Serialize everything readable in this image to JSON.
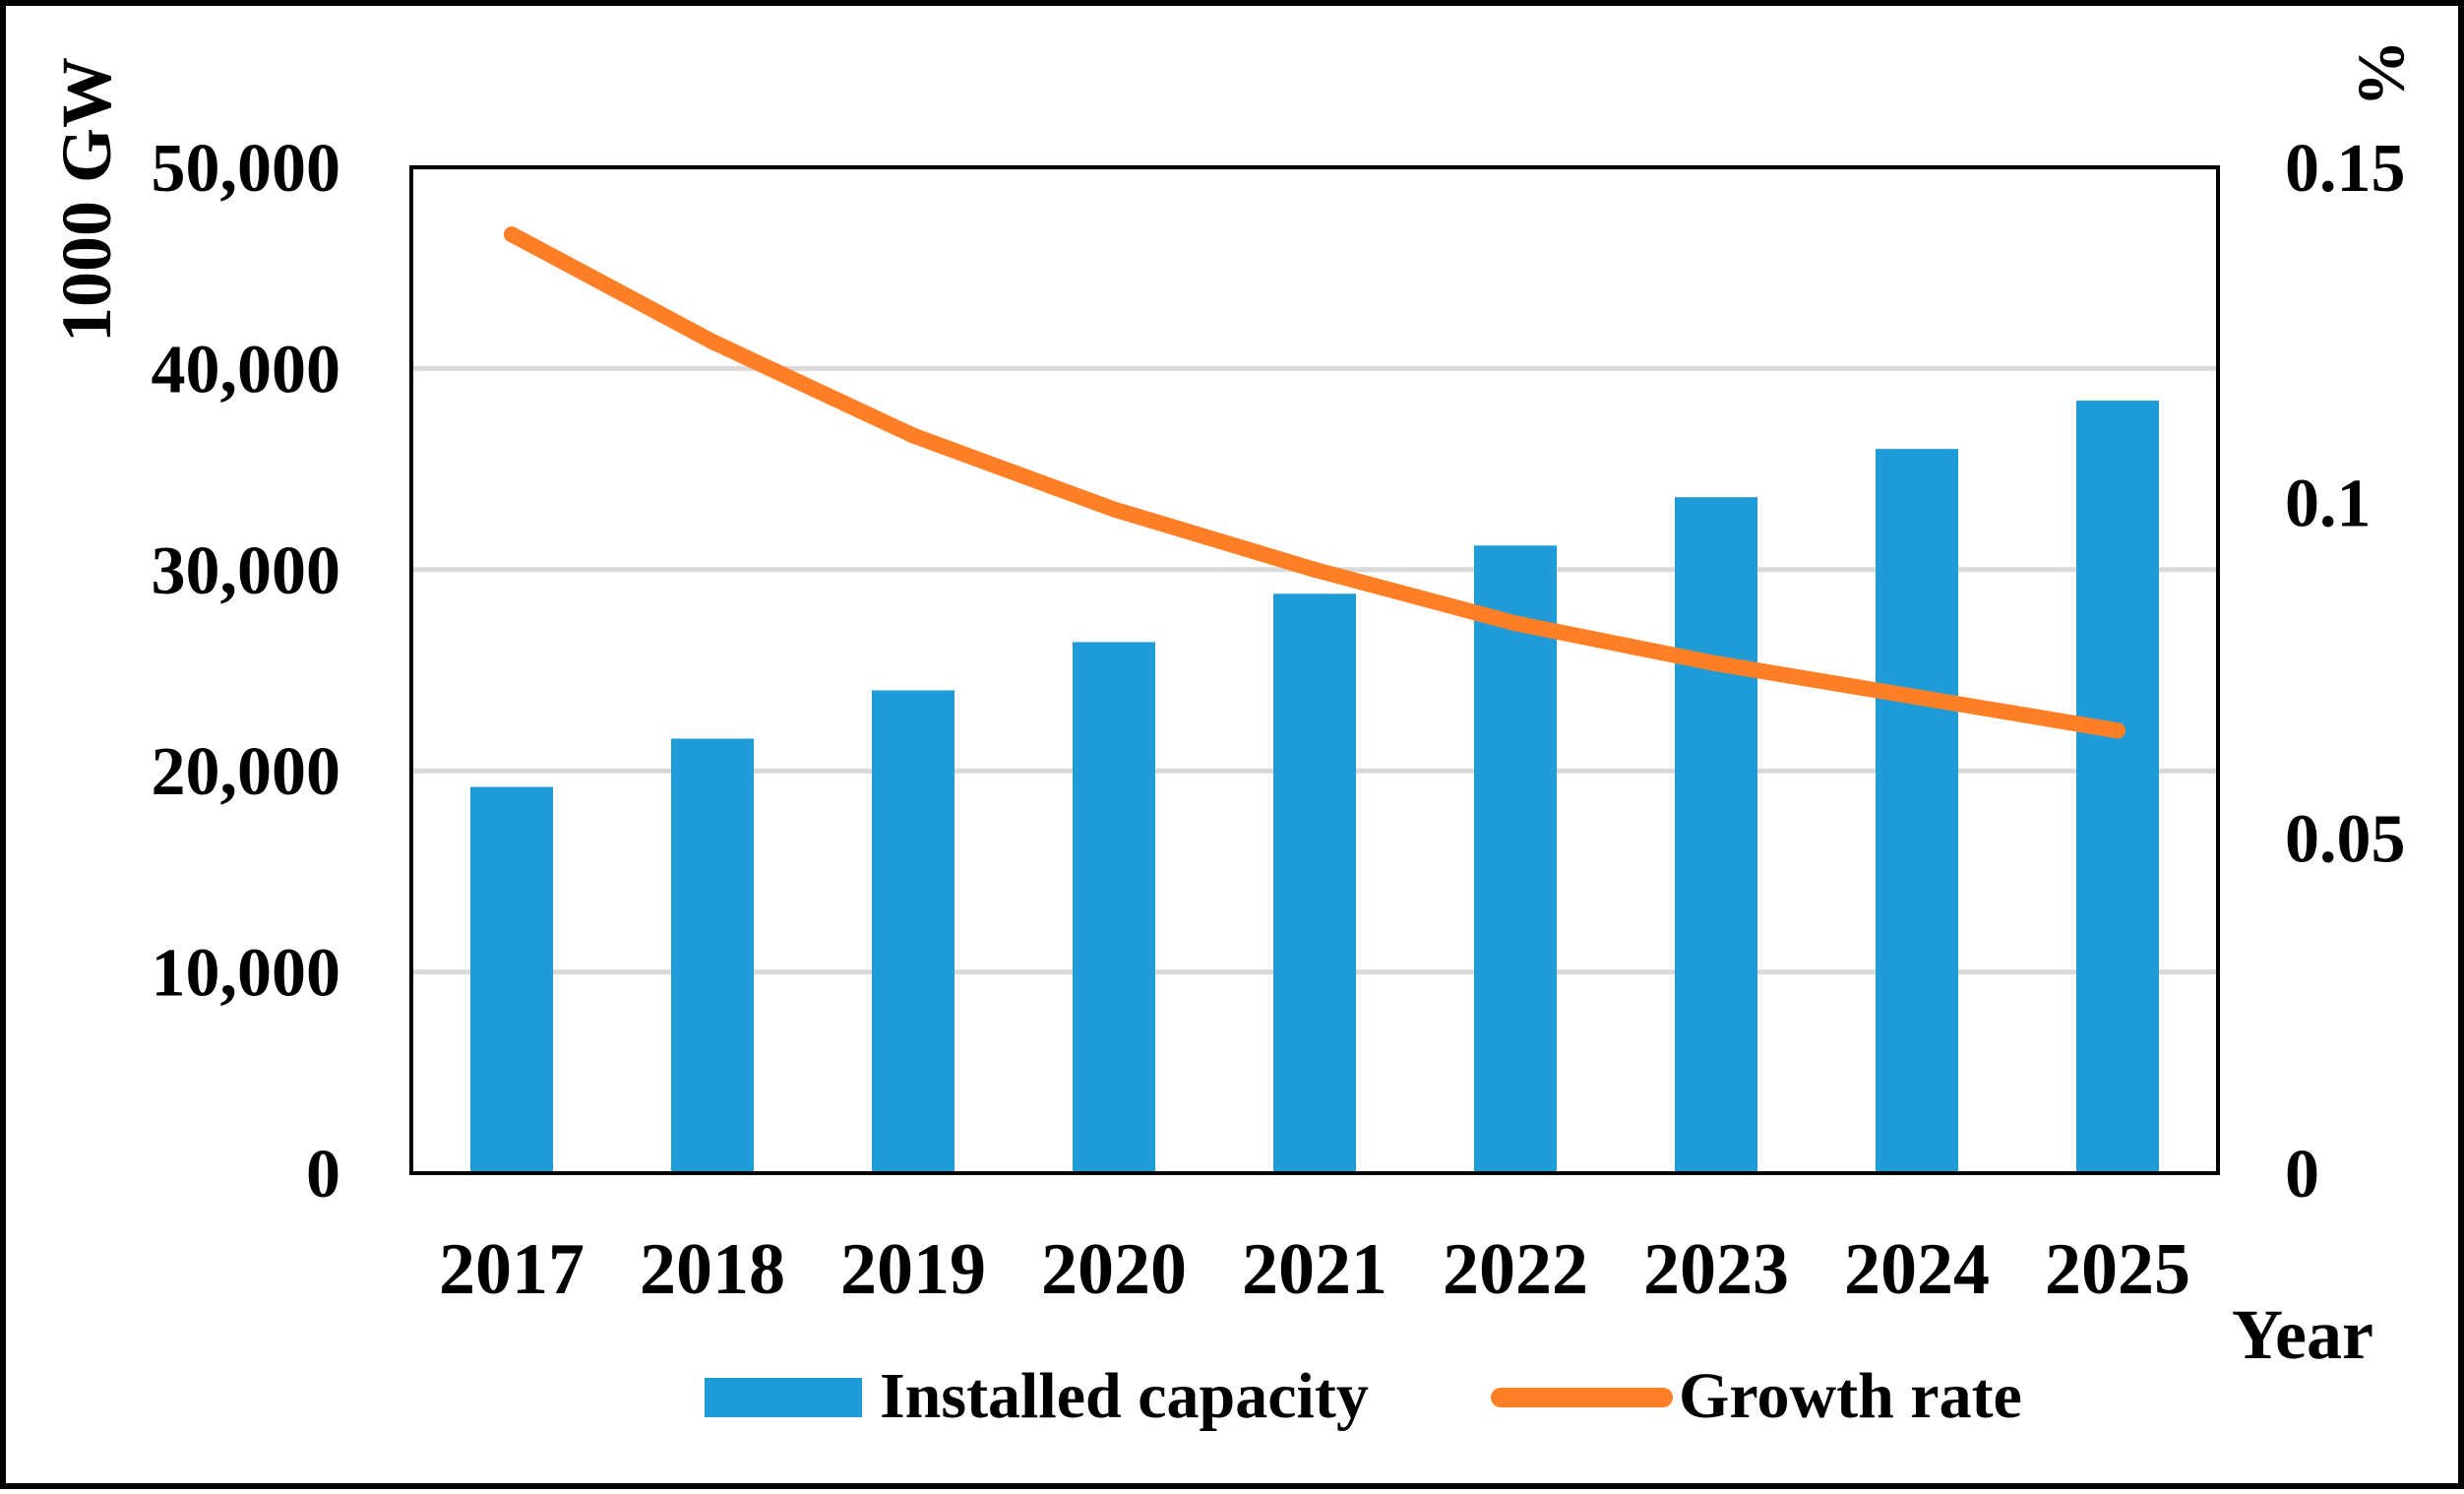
{
  "chart_data": {
    "type": "bar",
    "categories": [
      "2017",
      "2018",
      "2019",
      "2020",
      "2021",
      "2022",
      "2023",
      "2024",
      "2025"
    ],
    "series": [
      {
        "name": "Installed capacity",
        "type": "bar",
        "axis": "left",
        "color": "#1f9bd7",
        "values": [
          19200,
          21600,
          24000,
          26400,
          28800,
          31200,
          33600,
          36000,
          38400
        ]
      },
      {
        "name": "Growth rate",
        "type": "line",
        "axis": "right",
        "color": "#ff7f27",
        "values": [
          0.14,
          0.124,
          0.11,
          0.099,
          0.09,
          0.082,
          0.076,
          0.071,
          0.066
        ]
      }
    ],
    "left_axis": {
      "label": "1000 GW",
      "ylim": [
        0,
        50000
      ],
      "ticks": [
        0,
        10000,
        20000,
        30000,
        40000,
        50000
      ],
      "tick_labels": [
        "0",
        "10,000",
        "20,000",
        "30,000",
        "40,000",
        "50,000"
      ]
    },
    "right_axis": {
      "label": "%",
      "ylim": [
        0,
        0.15
      ],
      "ticks": [
        0,
        0.05,
        0.1,
        0.15
      ],
      "tick_labels": [
        "0",
        "0.05",
        "0.1",
        "0.15"
      ]
    },
    "xlabel": "Year",
    "grid": true,
    "legend": {
      "position": "bottom",
      "entries": [
        "Installed capacity",
        "Growth rate"
      ]
    }
  }
}
